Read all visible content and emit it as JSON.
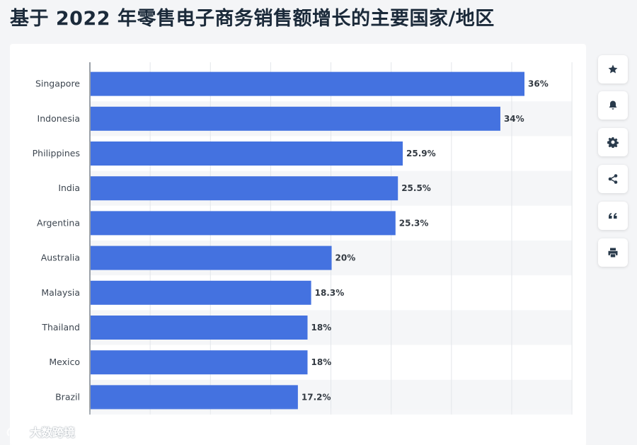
{
  "page": {
    "title": "基于 2022 年零售电子商务销售额增长的主要国家/地区",
    "watermark": "大数跨境"
  },
  "toolbar": [
    {
      "name": "star-icon"
    },
    {
      "name": "bell-icon"
    },
    {
      "name": "gear-icon"
    },
    {
      "name": "share-icon"
    },
    {
      "name": "quote-icon"
    },
    {
      "name": "print-icon"
    }
  ],
  "colors": {
    "bar": "#4472e0",
    "grid": "#e3e6ea",
    "band": "#f5f6f8",
    "label": "#3d4650",
    "value": "#333a42"
  },
  "chart_data": {
    "type": "bar",
    "orientation": "horizontal",
    "categories": [
      "Singapore",
      "Indonesia",
      "Philippines",
      "India",
      "Argentina",
      "Australia",
      "Malaysia",
      "Thailand",
      "Mexico",
      "Brazil"
    ],
    "values": [
      36,
      34,
      25.9,
      25.5,
      25.3,
      20,
      18.3,
      18,
      18,
      17.2
    ],
    "value_labels": [
      "36%",
      "34%",
      "25.9%",
      "25.5%",
      "25.3%",
      "20%",
      "18.3%",
      "18%",
      "18%",
      "17.2%"
    ],
    "unit": "%",
    "xlim": [
      0,
      40
    ],
    "grid": true,
    "title": "",
    "xlabel": "",
    "ylabel": ""
  }
}
